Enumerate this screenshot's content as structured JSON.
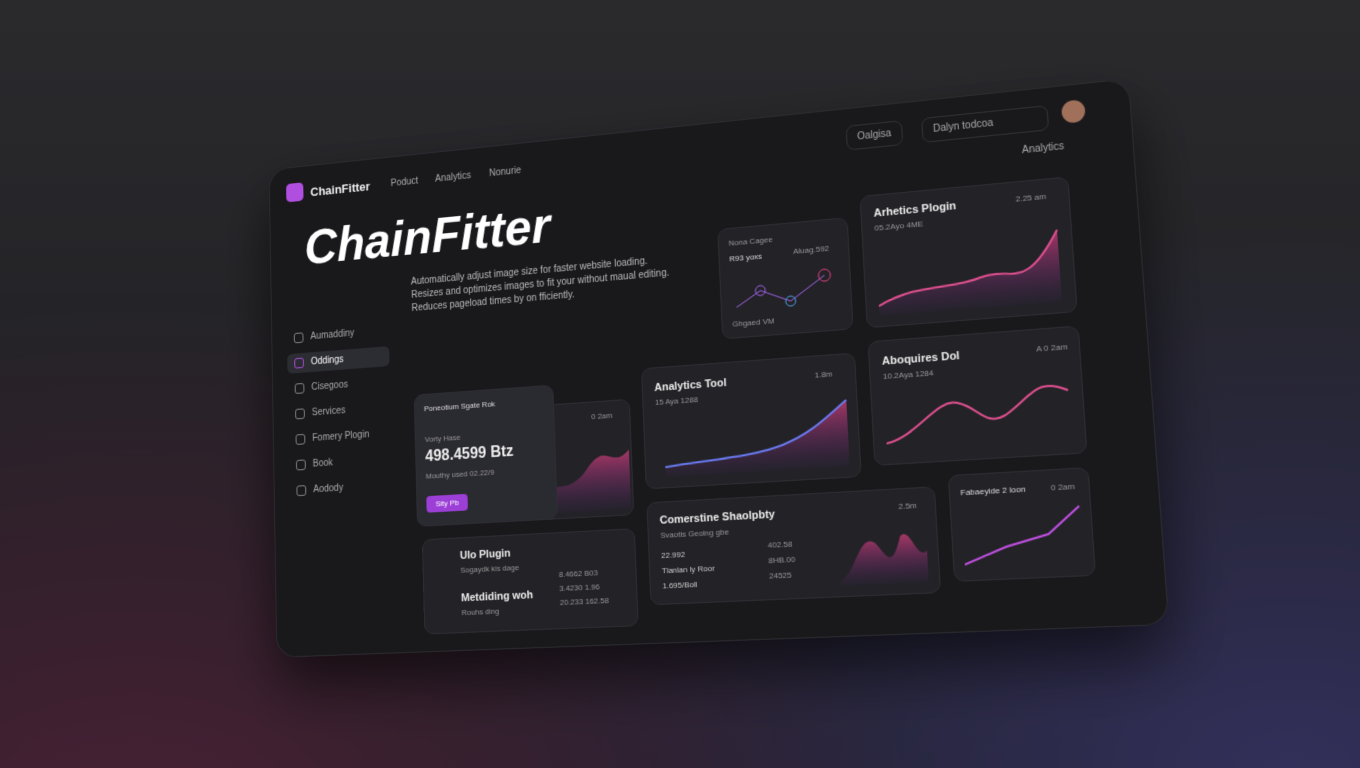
{
  "header": {
    "brand": "ChainFitter",
    "nav": [
      "Poduct",
      "Analytics",
      "Nonurie"
    ],
    "button": "Oalgisa",
    "search": "Dalyn todcoa",
    "section": "Analytics"
  },
  "hero": {
    "title": "ChainFitter",
    "description": [
      "Automatically adjust image size for faster website loading.",
      "Resizes and optimizes images to fit your without maual editing.",
      "Reduces pageload times by on fficiently."
    ]
  },
  "sidebar": {
    "items": [
      "Aumaddiny",
      "Oddings",
      "Cisegoos",
      "Services",
      "Fomery Plogin",
      "Book",
      "Aodody"
    ]
  },
  "cards": [
    {
      "title": "Nona Cagee",
      "meta": "Aluag.592",
      "sub": "R93 yoxs",
      "footer": "Ghgaed VM"
    },
    {
      "title": "Arhetics Plogin",
      "meta": "2.25 am",
      "sub": "05.2Ayo 4ME"
    },
    {
      "title": "Poneotium Sgate Rok",
      "label": "Vorty Hase",
      "value": "498.4599 Btz",
      "sub": "Mouthy used 02.22/9",
      "button": "Sity Pb",
      "meta": "0 2am"
    },
    {
      "title": "Analytics Tool",
      "meta": "1.8m",
      "sub": "15 Aya 1288"
    },
    {
      "title": "Aboquires Dol",
      "meta": "A 0 2am",
      "sub": "10.2Aya 1284"
    },
    {
      "title": "Ulo Plugin",
      "sub": "Sogaydk kis dage",
      "second": "Metdiding woh",
      "second_sub": "Rouhs ding",
      "stats": [
        "8.4662  B03",
        "3.4230  1.96",
        "20.233  162.58"
      ]
    },
    {
      "title": "Comerstine Shaolpbty",
      "sub": "Svaotis Geolng gbe",
      "meta": "2.5m",
      "list": [
        "22.992",
        "Tlanlan ly Roor",
        "1.695/Boll"
      ],
      "stats": [
        "402.58",
        "8HB.00",
        "24525"
      ]
    },
    {
      "title": "Fabaeyide 2 loon",
      "meta": "0 2am"
    }
  ]
}
